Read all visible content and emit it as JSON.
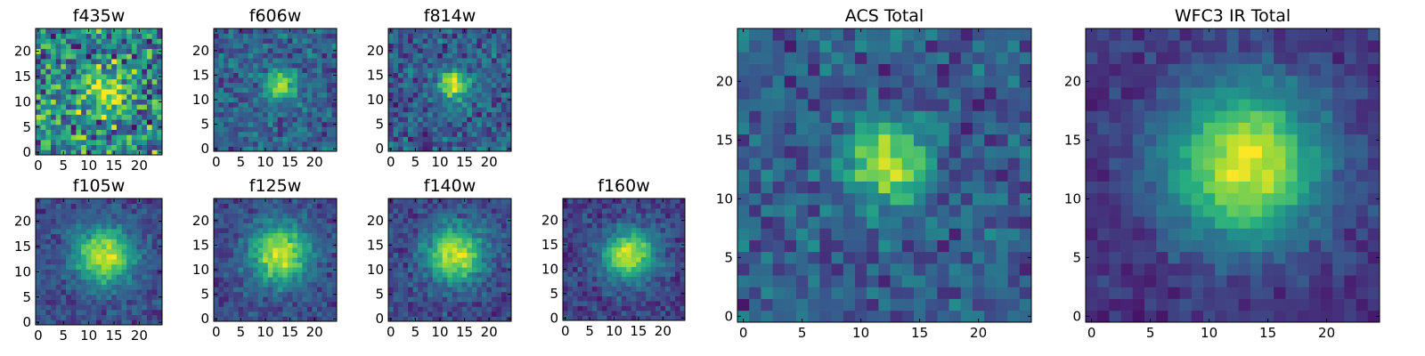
{
  "chart_data": [
    {
      "type": "heatmap",
      "title": "f435w",
      "xticks": [
        0,
        5,
        10,
        15,
        20
      ],
      "yticks": [
        0,
        5,
        10,
        15,
        20
      ],
      "grid_size": 25,
      "colormap": "viridis",
      "peak_pixel": [
        13,
        12
      ],
      "spread": 3.0,
      "noise": 0.55,
      "floor": 0.62
    },
    {
      "type": "heatmap",
      "title": "f606w",
      "xticks": [
        0,
        5,
        10,
        15,
        20
      ],
      "yticks": [
        0,
        5,
        10,
        15,
        20
      ],
      "grid_size": 25,
      "colormap": "viridis",
      "peak_pixel": [
        13,
        13
      ],
      "spread": 2.2,
      "noise": 0.22,
      "floor": 0.4
    },
    {
      "type": "heatmap",
      "title": "f814w",
      "xticks": [
        0,
        5,
        10,
        15,
        20
      ],
      "yticks": [
        0,
        5,
        10,
        15,
        20
      ],
      "grid_size": 25,
      "colormap": "viridis",
      "peak_pixel": [
        13,
        13
      ],
      "spread": 2.2,
      "noise": 0.26,
      "floor": 0.38
    },
    {
      "type": "heatmap",
      "title": "f105w",
      "xticks": [
        0,
        5,
        10,
        15,
        20
      ],
      "yticks": [
        0,
        5,
        10,
        15,
        20
      ],
      "grid_size": 25,
      "colormap": "viridis",
      "peak_pixel": [
        13,
        13
      ],
      "spread": 4.0,
      "noise": 0.14,
      "floor": 0.3
    },
    {
      "type": "heatmap",
      "title": "f125w",
      "xticks": [
        0,
        5,
        10,
        15,
        20
      ],
      "yticks": [
        0,
        5,
        10,
        15,
        20
      ],
      "grid_size": 25,
      "colormap": "viridis",
      "peak_pixel": [
        13,
        13
      ],
      "spread": 4.3,
      "noise": 0.15,
      "floor": 0.3
    },
    {
      "type": "heatmap",
      "title": "f140w",
      "xticks": [
        0,
        5,
        10,
        15,
        20
      ],
      "yticks": [
        0,
        5,
        10,
        15,
        20
      ],
      "grid_size": 25,
      "colormap": "viridis",
      "peak_pixel": [
        13,
        13
      ],
      "spread": 4.0,
      "noise": 0.16,
      "floor": 0.3
    },
    {
      "type": "heatmap",
      "title": "f160w",
      "xticks": [
        0,
        5,
        10,
        15,
        20
      ],
      "yticks": [
        0,
        5,
        10,
        15,
        20
      ],
      "grid_size": 25,
      "colormap": "viridis",
      "peak_pixel": [
        13,
        13
      ],
      "spread": 3.7,
      "noise": 0.16,
      "floor": 0.26
    },
    {
      "type": "heatmap",
      "title": "ACS Total",
      "xticks": [
        0,
        5,
        10,
        15,
        20
      ],
      "yticks": [
        0,
        5,
        10,
        15,
        20
      ],
      "grid_size": 25,
      "colormap": "viridis",
      "peak_pixel": [
        12,
        13
      ],
      "spread": 2.4,
      "noise": 0.22,
      "floor": 0.38
    },
    {
      "type": "heatmap",
      "title": "WFC3 IR Total",
      "xticks": [
        0,
        5,
        10,
        15,
        20
      ],
      "yticks": [
        0,
        5,
        10,
        15,
        20
      ],
      "grid_size": 25,
      "colormap": "viridis",
      "peak_pixel": [
        13,
        13
      ],
      "spread": 4.6,
      "noise": 0.1,
      "floor": 0.22
    }
  ]
}
